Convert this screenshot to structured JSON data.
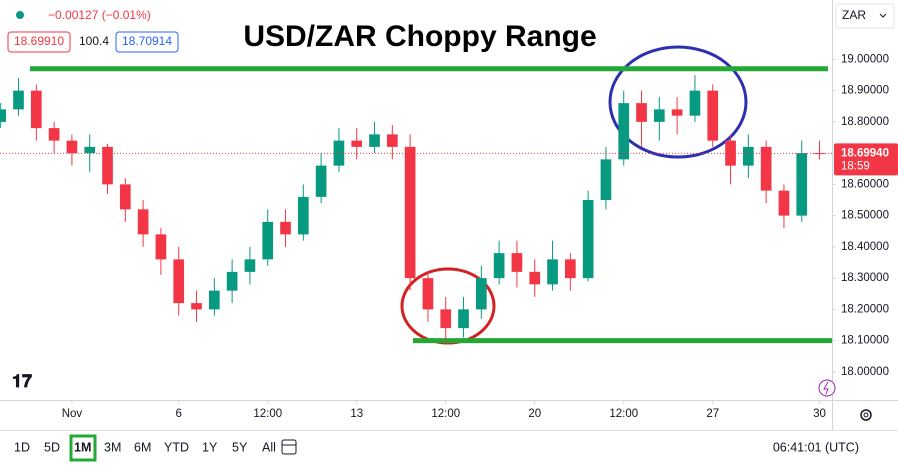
{
  "header": {
    "change": "−0.00127 (−0.01%)",
    "bid": "18.69910",
    "spread": "100.4",
    "ask": "18.70914",
    "currency": "ZAR"
  },
  "chart_data": {
    "type": "candlestick",
    "title": "USD/ZAR Choppy Range",
    "x": [
      -2,
      -1.5,
      -1,
      -0.5,
      0,
      0.5,
      1,
      1.5,
      2,
      2.5,
      3,
      3.5,
      4,
      4.5,
      5,
      5.5,
      6,
      6.5,
      7,
      7.5,
      8,
      8.5,
      9,
      9.5,
      10,
      10.5,
      11,
      11.5,
      12,
      12.5,
      13,
      13.5,
      14,
      14.5,
      15,
      15.5,
      16,
      16.5,
      17,
      17.5,
      18,
      18.5,
      19,
      19.5,
      20,
      20.5,
      21
    ],
    "open": [
      18.8,
      18.84,
      18.9,
      18.78,
      18.74,
      18.7,
      18.72,
      18.6,
      18.52,
      18.44,
      18.36,
      18.22,
      18.2,
      18.26,
      18.32,
      18.36,
      18.48,
      18.44,
      18.56,
      18.66,
      18.74,
      18.72,
      18.76,
      18.72,
      18.3,
      18.2,
      18.14,
      18.2,
      18.3,
      18.38,
      18.32,
      18.28,
      18.36,
      18.3,
      18.55,
      18.68,
      18.86,
      18.8,
      18.84,
      18.82,
      18.9,
      18.74,
      18.66,
      18.72,
      18.58,
      18.5,
      18.7
    ],
    "high": [
      18.86,
      18.94,
      18.92,
      18.8,
      18.76,
      18.76,
      18.73,
      18.62,
      18.55,
      18.46,
      18.4,
      18.26,
      18.3,
      18.36,
      18.4,
      18.52,
      18.52,
      18.6,
      18.7,
      18.78,
      18.78,
      18.8,
      18.79,
      18.76,
      18.32,
      18.24,
      18.24,
      18.34,
      18.42,
      18.42,
      18.36,
      18.42,
      18.38,
      18.58,
      18.72,
      18.9,
      18.9,
      18.88,
      18.88,
      18.95,
      18.92,
      18.76,
      18.76,
      18.74,
      18.6,
      18.74,
      18.74
    ],
    "low": [
      18.78,
      18.82,
      18.74,
      18.7,
      18.66,
      18.64,
      18.57,
      18.48,
      18.4,
      18.31,
      18.18,
      18.16,
      18.18,
      18.22,
      18.28,
      18.34,
      18.4,
      18.42,
      18.54,
      18.64,
      18.68,
      18.7,
      18.68,
      18.26,
      18.16,
      18.1,
      18.11,
      18.17,
      18.28,
      18.27,
      18.24,
      18.26,
      18.26,
      18.29,
      18.52,
      18.66,
      18.72,
      18.74,
      18.76,
      18.8,
      18.72,
      18.6,
      18.62,
      18.54,
      18.46,
      18.48,
      18.68
    ],
    "close": [
      18.84,
      18.9,
      18.78,
      18.74,
      18.7,
      18.72,
      18.6,
      18.52,
      18.44,
      18.36,
      18.22,
      18.2,
      18.26,
      18.32,
      18.36,
      18.48,
      18.44,
      18.56,
      18.66,
      18.74,
      18.72,
      18.76,
      18.72,
      18.3,
      18.2,
      18.14,
      18.2,
      18.3,
      18.38,
      18.32,
      18.28,
      18.36,
      18.3,
      18.55,
      18.68,
      18.86,
      18.8,
      18.84,
      18.82,
      18.9,
      18.74,
      18.66,
      18.72,
      18.58,
      18.5,
      18.7,
      18.6994
    ],
    "up_color": "#089981",
    "down_color": "#f23645",
    "xlim": [
      -2.02,
      21.35
    ],
    "ylim": [
      17.91,
      19.19
    ],
    "xticks": [
      {
        "value": 0,
        "label": "Nov"
      },
      {
        "value": 3,
        "label": "6"
      },
      {
        "value": 5.5,
        "label": "12:00"
      },
      {
        "value": 8,
        "label": "13"
      },
      {
        "value": 10.5,
        "label": "12:00"
      },
      {
        "value": 13,
        "label": "20"
      },
      {
        "value": 15.5,
        "label": "12:00"
      },
      {
        "value": 18,
        "label": "27"
      },
      {
        "value": 21,
        "label": "30"
      }
    ],
    "yticks": [
      {
        "value": 18,
        "label": "18.00000"
      },
      {
        "value": 18.1,
        "label": "18.10000"
      },
      {
        "value": 18.2,
        "label": "18.20000"
      },
      {
        "value": 18.3,
        "label": "18.30000"
      },
      {
        "value": 18.4,
        "label": "18.40000"
      },
      {
        "value": 18.5,
        "label": "18.50000"
      },
      {
        "value": 18.6,
        "label": "18.60000"
      },
      {
        "value": 18.7,
        "label": "18.70000"
      },
      {
        "value": 18.8,
        "label": "18.80000"
      },
      {
        "value": 18.9,
        "label": "18.90000"
      },
      {
        "value": 19,
        "label": "19.00000"
      }
    ],
    "grid": false,
    "levels": [
      {
        "value": 18.97,
        "color": "#22a834"
      },
      {
        "value": 18.1,
        "color": "#22a834"
      }
    ],
    "last_price": {
      "value": 18.6994,
      "label": "18.69940"
    },
    "countdown": "18:59"
  },
  "toolbar": {
    "ranges": [
      "1D",
      "5D",
      "1M",
      "3M",
      "6M",
      "YTD",
      "1Y",
      "5Y",
      "All"
    ],
    "selected_range": "1M",
    "clock": "06:41:01 (UTC)"
  }
}
